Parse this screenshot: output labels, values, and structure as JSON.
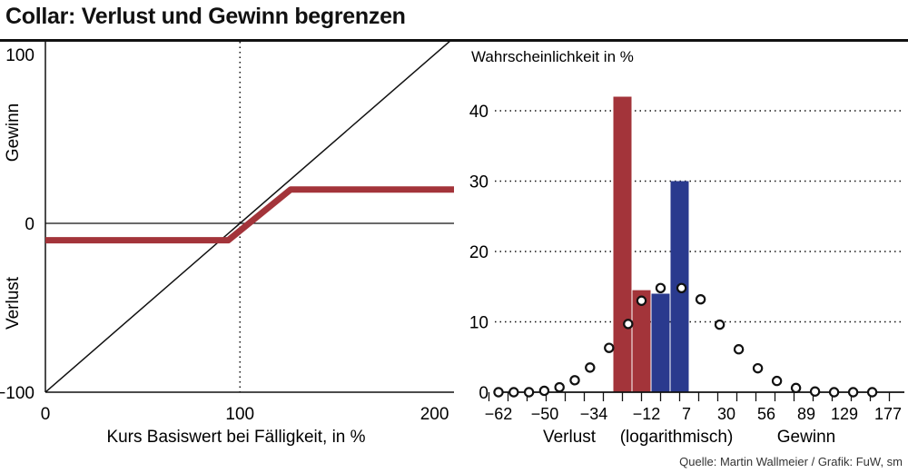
{
  "title": "Collar: Verlust und Gewinn begrenzen",
  "source": "Quelle: Martin Wallmeier / Grafik: FuW, sm",
  "colors": {
    "loss": "#a3343a",
    "gain": "#2a3a8e",
    "line": "#111111"
  },
  "chart_data": [
    {
      "type": "line",
      "title": "",
      "xlabel": "Kurs Basiswert bei Fälligkeit, in %",
      "ylabel_top": "Gewinn",
      "ylabel_bottom": "Verlust",
      "xlim": [
        0,
        210
      ],
      "ylim": [
        -100,
        100
      ],
      "x_ticks": [
        "0",
        "100",
        "200"
      ],
      "y_ticks": [
        "100",
        "0",
        "−100"
      ],
      "reference_x": 100,
      "series": [
        {
          "style": "thin-black",
          "x": [
            0,
            210
          ],
          "y": [
            -100,
            110
          ]
        },
        {
          "style": "thick-red",
          "x": [
            0,
            94,
            126,
            210
          ],
          "y": [
            -10,
            -10,
            20,
            20
          ]
        }
      ]
    },
    {
      "type": "bar",
      "title": "Wahrscheinlichkeit in %",
      "ylim": [
        0,
        45
      ],
      "y_ticks": [
        "0",
        "10",
        "20",
        "30",
        "40"
      ],
      "grid": true,
      "x_tick_labels": [
        "−62",
        "−50",
        "−34",
        "−12",
        "7",
        "30",
        "56",
        "89",
        "129",
        "177"
      ],
      "x_sublabels": [
        "Verlust",
        "(logarithmisch)",
        "Gewinn"
      ],
      "bars": [
        {
          "slot": 6.5,
          "value": 42,
          "color": "loss"
        },
        {
          "slot": 7.5,
          "value": 14.5,
          "color": "loss"
        },
        {
          "slot": 8.5,
          "value": 14,
          "color": "gain"
        },
        {
          "slot": 9.5,
          "value": 30,
          "color": "gain"
        }
      ],
      "points": [
        {
          "slot": 0,
          "value": 0
        },
        {
          "slot": 0.8,
          "value": 0
        },
        {
          "slot": 1.6,
          "value": 0
        },
        {
          "slot": 2.4,
          "value": 0.2
        },
        {
          "slot": 3.2,
          "value": 0.7
        },
        {
          "slot": 4.0,
          "value": 1.7
        },
        {
          "slot": 4.8,
          "value": 3.5
        },
        {
          "slot": 5.8,
          "value": 6.3
        },
        {
          "slot": 6.8,
          "value": 9.7
        },
        {
          "slot": 7.5,
          "value": 13
        },
        {
          "slot": 8.5,
          "value": 14.8
        },
        {
          "slot": 9.6,
          "value": 14.8
        },
        {
          "slot": 10.6,
          "value": 13.2
        },
        {
          "slot": 11.6,
          "value": 9.6
        },
        {
          "slot": 12.6,
          "value": 6.1
        },
        {
          "slot": 13.6,
          "value": 3.4
        },
        {
          "slot": 14.6,
          "value": 1.6
        },
        {
          "slot": 15.6,
          "value": 0.6
        },
        {
          "slot": 16.6,
          "value": 0.1
        },
        {
          "slot": 17.6,
          "value": 0
        },
        {
          "slot": 18.6,
          "value": 0
        },
        {
          "slot": 19.6,
          "value": 0
        }
      ]
    }
  ]
}
